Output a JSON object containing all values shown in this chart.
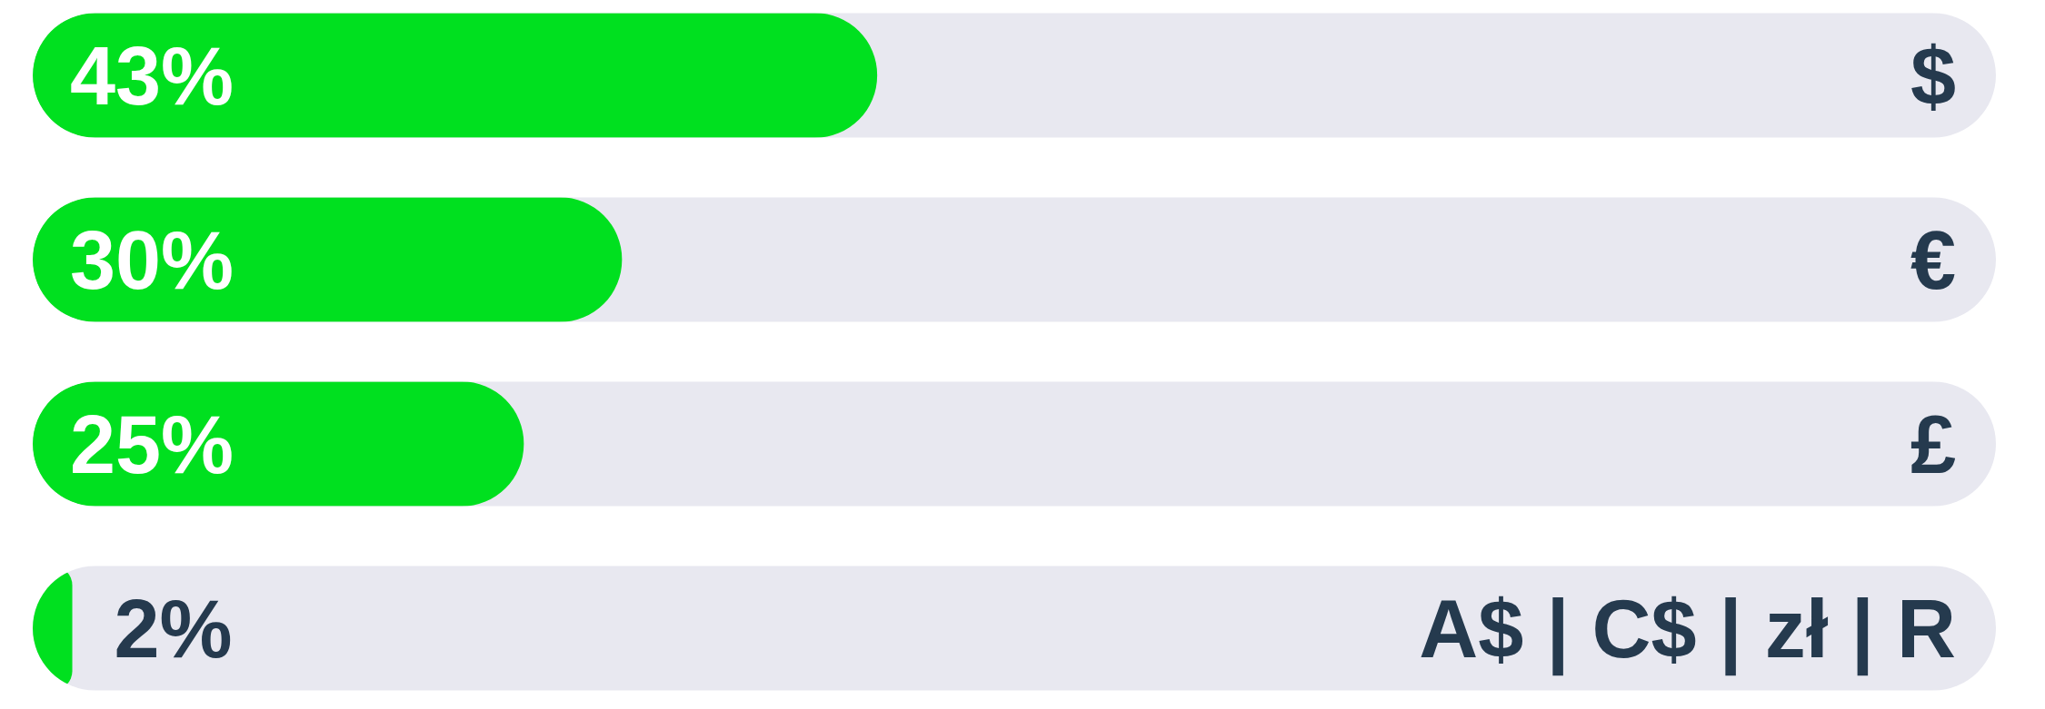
{
  "chart_data": {
    "type": "bar",
    "orientation": "horizontal",
    "categories": [
      "$",
      "€",
      "£",
      "A$ | C$ | zł | R"
    ],
    "values": [
      43,
      30,
      25,
      2
    ],
    "color": "#00e01f",
    "value_labels": [
      "43%",
      "30%",
      "25%",
      "2%"
    ],
    "xlim": [
      0,
      100
    ],
    "tick_labels": "y"
  }
}
